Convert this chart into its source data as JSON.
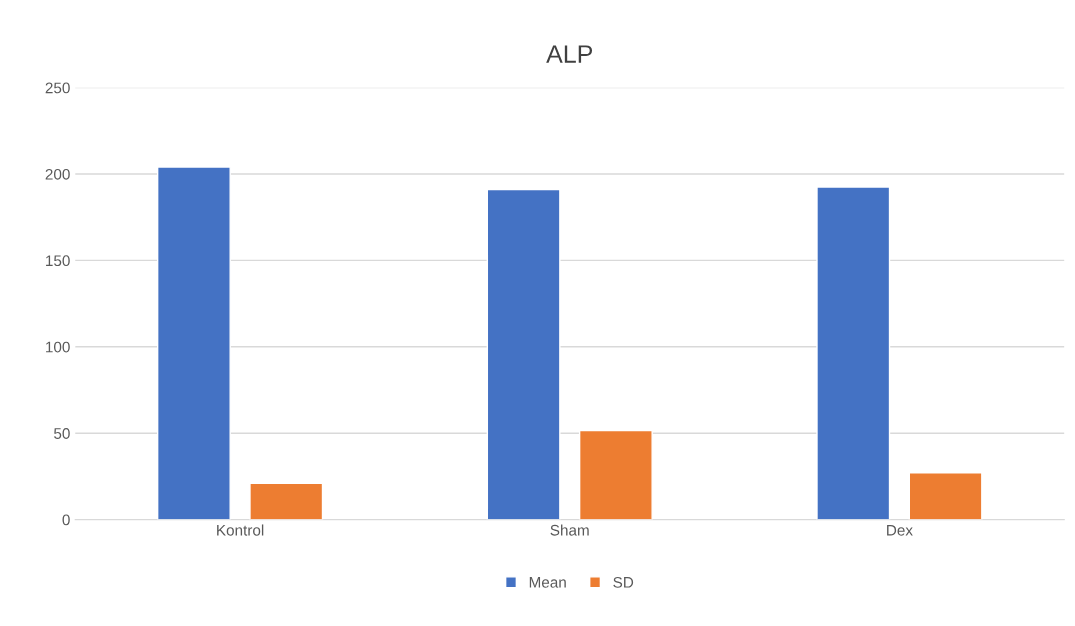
{
  "chart_data": {
    "type": "bar",
    "title": "ALP",
    "categories": [
      "Kontrol",
      "Sham",
      "Dex"
    ],
    "series": [
      {
        "name": "Mean",
        "color": "#4472c4",
        "values": [
          204,
          191,
          192.5
        ]
      },
      {
        "name": "SD",
        "color": "#ed7d31",
        "values": [
          21,
          51.5,
          27
        ]
      }
    ],
    "ylim": [
      0,
      250
    ],
    "yticks": [
      0,
      50,
      100,
      150,
      200,
      250
    ],
    "grid": "y",
    "legend": "bottom"
  }
}
